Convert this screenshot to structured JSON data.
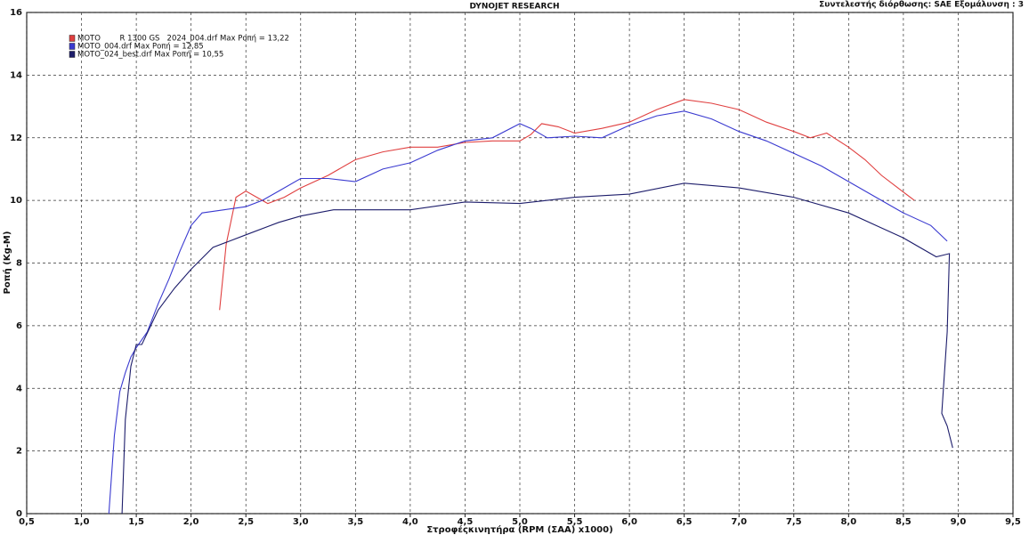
{
  "chart_data": {
    "type": "line",
    "title": "DYNOJET RESEARCH",
    "subtitle": "Συντελεστής διόρθωσης: SAE  Εξομάλυνση : 3",
    "x_label": "Στροφέςκινητήρα  (RPM (ΣΑΑ) x1000)",
    "y_label": "Ροπή (Kg-M)",
    "xlim": [
      0.5,
      9.5
    ],
    "xticks": [
      {
        "value": 0.5,
        "label": "0,5"
      },
      {
        "value": 1.0,
        "label": "1,0"
      },
      {
        "value": 1.5,
        "label": "1,5"
      },
      {
        "value": 2.0,
        "label": "2,0"
      },
      {
        "value": 2.5,
        "label": "2,5"
      },
      {
        "value": 3.0,
        "label": "3,0"
      },
      {
        "value": 3.5,
        "label": "3,5"
      },
      {
        "value": 4.0,
        "label": "4,0"
      },
      {
        "value": 4.5,
        "label": "4,5"
      },
      {
        "value": 5.0,
        "label": "5,0"
      },
      {
        "value": 5.5,
        "label": "5,5"
      },
      {
        "value": 6.0,
        "label": "6,0"
      },
      {
        "value": 6.5,
        "label": "6,5"
      },
      {
        "value": 7.0,
        "label": "7,0"
      },
      {
        "value": 7.5,
        "label": "7,5"
      },
      {
        "value": 8.0,
        "label": "8,0"
      },
      {
        "value": 8.5,
        "label": "8,5"
      },
      {
        "value": 9.0,
        "label": "9,0"
      },
      {
        "value": 9.5,
        "label": "9,5"
      }
    ],
    "ylim": [
      0,
      16
    ],
    "yticks": [
      0,
      2,
      4,
      6,
      8,
      10,
      12,
      14,
      16
    ],
    "grid": true,
    "legend": "top-left",
    "series": [
      {
        "name": "MOTO        R 1300 GS   2024_004.drf Max Ροπή = 13,22",
        "color": "#e04040",
        "x": [
          2.26,
          2.32,
          2.41,
          2.5,
          2.6,
          2.7,
          2.85,
          3.0,
          3.25,
          3.5,
          3.75,
          4.0,
          4.25,
          4.5,
          4.75,
          5.0,
          5.1,
          5.2,
          5.35,
          5.5,
          5.75,
          6.0,
          6.25,
          6.5,
          6.75,
          7.0,
          7.25,
          7.5,
          7.65,
          7.8,
          8.0,
          8.15,
          8.3,
          8.45,
          8.6
        ],
        "values": [
          6.5,
          8.6,
          10.1,
          10.3,
          10.1,
          9.9,
          10.1,
          10.4,
          10.8,
          11.3,
          11.55,
          11.7,
          11.7,
          11.85,
          11.9,
          11.9,
          12.1,
          12.45,
          12.35,
          12.15,
          12.3,
          12.5,
          12.9,
          13.22,
          13.1,
          12.9,
          12.5,
          12.2,
          12.0,
          12.15,
          11.7,
          11.3,
          10.8,
          10.4,
          10.0
        ]
      },
      {
        "name": "MOTO_004.drf Max Ροπή = 12,85",
        "color": "#3a3ad0",
        "x": [
          1.25,
          1.3,
          1.35,
          1.4,
          1.45,
          1.5,
          1.6,
          1.7,
          1.8,
          1.9,
          2.0,
          2.1,
          2.3,
          2.5,
          2.65,
          2.8,
          3.0,
          3.25,
          3.5,
          3.75,
          4.0,
          4.25,
          4.5,
          4.75,
          5.0,
          5.1,
          5.25,
          5.5,
          5.75,
          6.0,
          6.25,
          6.5,
          6.75,
          7.0,
          7.25,
          7.5,
          7.75,
          8.0,
          8.25,
          8.5,
          8.75,
          8.9
        ],
        "values": [
          0,
          2.5,
          3.9,
          4.5,
          5.0,
          5.3,
          5.8,
          6.7,
          7.5,
          8.4,
          9.2,
          9.6,
          9.7,
          9.8,
          10.0,
          10.3,
          10.7,
          10.7,
          10.6,
          11.0,
          11.2,
          11.6,
          11.9,
          12.0,
          12.45,
          12.3,
          12.0,
          12.05,
          12.0,
          12.4,
          12.7,
          12.85,
          12.6,
          12.2,
          11.9,
          11.5,
          11.1,
          10.6,
          10.1,
          9.6,
          9.2,
          8.7
        ]
      },
      {
        "name": "MOTO_024_best.drf Max Ροπή = 10,55",
        "color": "#1d1d6b",
        "x": [
          1.37,
          1.4,
          1.45,
          1.5,
          1.55,
          1.7,
          1.85,
          2.0,
          2.2,
          2.5,
          2.8,
          3.0,
          3.3,
          3.5,
          4.0,
          4.5,
          5.0,
          5.5,
          6.0,
          6.5,
          7.0,
          7.5,
          8.0,
          8.5,
          8.8,
          8.92,
          8.9,
          8.85,
          8.9,
          8.95
        ],
        "values": [
          0,
          3.0,
          4.7,
          5.4,
          5.4,
          6.5,
          7.2,
          7.8,
          8.5,
          8.9,
          9.3,
          9.5,
          9.7,
          9.7,
          9.7,
          9.95,
          9.9,
          10.1,
          10.2,
          10.55,
          10.4,
          10.1,
          9.6,
          8.8,
          8.2,
          8.3,
          5.8,
          3.2,
          2.8,
          2.1
        ]
      }
    ]
  }
}
